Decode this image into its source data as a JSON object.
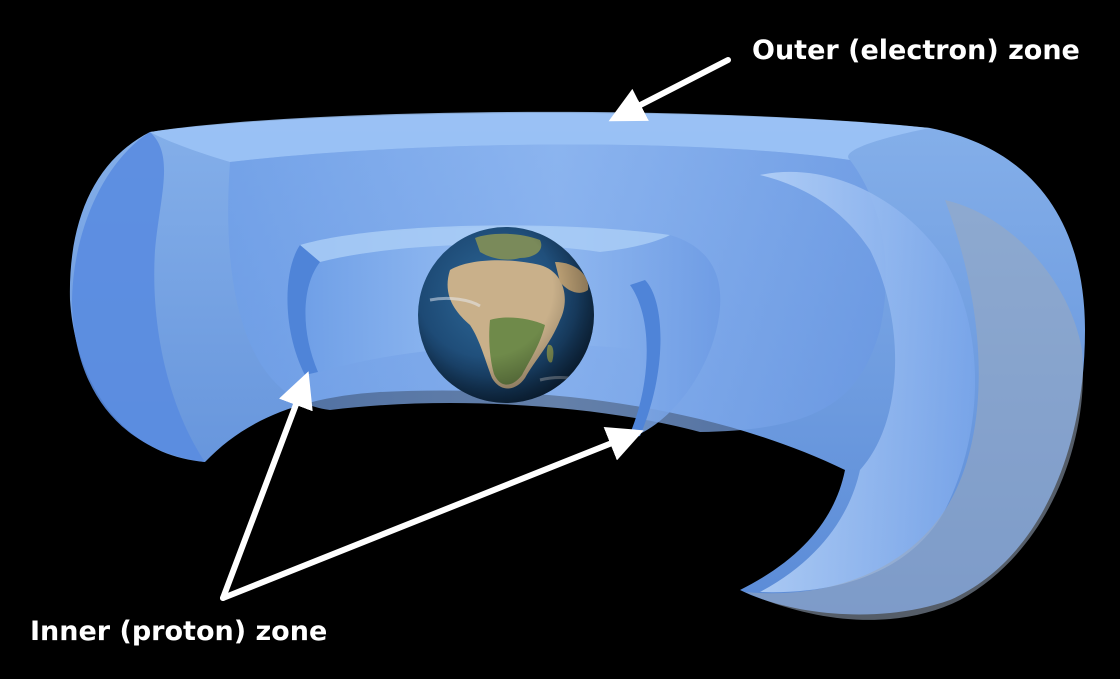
{
  "labels": {
    "outer": "Outer (electron) zone",
    "inner": "Inner (proton) zone"
  },
  "colors": {
    "background": "#000000",
    "belt_light": "#7fb2f5",
    "belt_mid": "#5b8fe0",
    "belt_dark": "#3f6fc4",
    "ocean": "#1f4e7a",
    "land": "#c9b08a",
    "arrow": "#ffffff"
  }
}
